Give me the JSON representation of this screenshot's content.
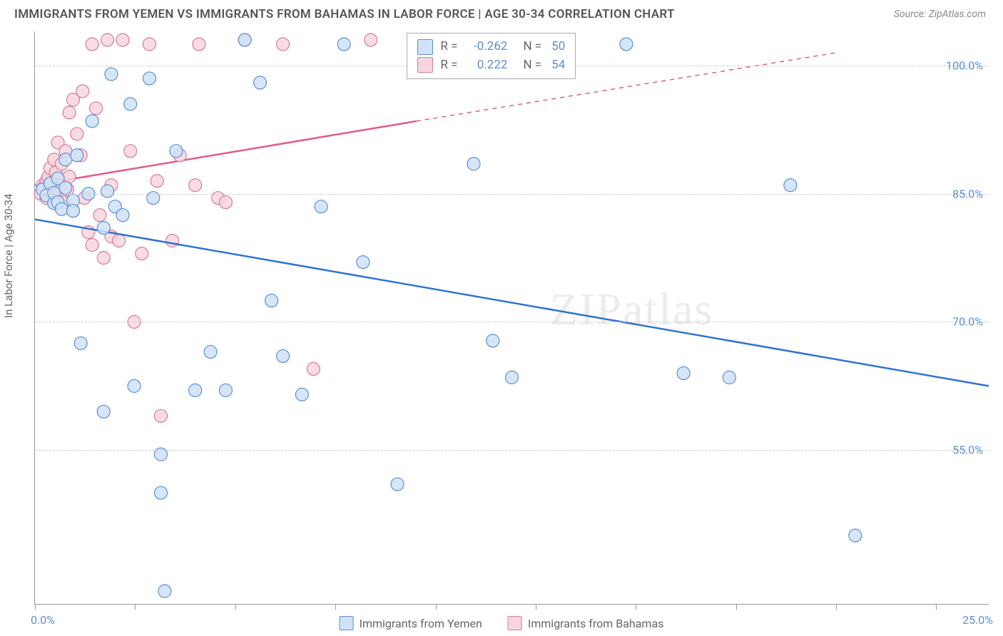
{
  "title": "IMMIGRANTS FROM YEMEN VS IMMIGRANTS FROM BAHAMAS IN LABOR FORCE | AGE 30-34 CORRELATION CHART",
  "source_label": "Source: ZipAtlas.com",
  "watermark": "ZIPatlas",
  "yaxis_title": "In Labor Force | Age 30-34",
  "chart": {
    "type": "scatter",
    "xlim": [
      0.0,
      25.0
    ],
    "ylim": [
      37.0,
      104.0
    ],
    "xtick_positions_pct": [
      0,
      10.5,
      21,
      31.5,
      42,
      52.5,
      63,
      73.5,
      84,
      94.5
    ],
    "xlabel_min": "0.0%",
    "xlabel_max": "25.0%",
    "ytick_labels": [
      "100.0%",
      "85.0%",
      "70.0%",
      "55.0%"
    ],
    "ytick_values": [
      100.0,
      85.0,
      70.0,
      55.0
    ],
    "grid_color": "#cccccc",
    "background_color": "#ffffff",
    "marker_radius": 9,
    "marker_stroke_width": 1.2,
    "line_width": 2.5,
    "series": [
      {
        "name": "Immigrants from Yemen",
        "fill": "#cfe2f7",
        "stroke": "#5b8fd4",
        "line_color": "#2f74d0",
        "r_label": "R =",
        "r_value": "-0.262",
        "n_label": "N =",
        "n_value": "50",
        "trend": {
          "x1": 0.0,
          "y1": 82.0,
          "x2": 25.0,
          "y2": 62.5
        },
        "points": [
          [
            0.2,
            85.5
          ],
          [
            0.3,
            84.8
          ],
          [
            0.4,
            86.2
          ],
          [
            0.5,
            83.9
          ],
          [
            0.5,
            85.1
          ],
          [
            0.6,
            84.0
          ],
          [
            0.6,
            86.8
          ],
          [
            0.7,
            83.2
          ],
          [
            0.8,
            85.7
          ],
          [
            0.8,
            89.0
          ],
          [
            1.0,
            84.2
          ],
          [
            1.0,
            83.0
          ],
          [
            1.1,
            89.5
          ],
          [
            1.2,
            67.5
          ],
          [
            1.4,
            85.0
          ],
          [
            1.5,
            93.5
          ],
          [
            1.8,
            81.0
          ],
          [
            1.8,
            59.5
          ],
          [
            1.9,
            85.3
          ],
          [
            2.0,
            99.0
          ],
          [
            2.1,
            83.5
          ],
          [
            2.3,
            82.5
          ],
          [
            2.5,
            95.5
          ],
          [
            2.6,
            62.5
          ],
          [
            3.0,
            98.5
          ],
          [
            3.1,
            84.5
          ],
          [
            3.3,
            54.5
          ],
          [
            3.3,
            50.0
          ],
          [
            3.4,
            38.5
          ],
          [
            3.7,
            90.0
          ],
          [
            4.2,
            62.0
          ],
          [
            4.6,
            66.5
          ],
          [
            5.0,
            62.0
          ],
          [
            5.5,
            103.0
          ],
          [
            5.9,
            98.0
          ],
          [
            6.2,
            72.5
          ],
          [
            6.5,
            66.0
          ],
          [
            7.0,
            61.5
          ],
          [
            7.5,
            83.5
          ],
          [
            8.1,
            102.5
          ],
          [
            8.6,
            77.0
          ],
          [
            9.5,
            51.0
          ],
          [
            11.5,
            88.5
          ],
          [
            12.0,
            67.8
          ],
          [
            12.5,
            63.5
          ],
          [
            15.5,
            102.5
          ],
          [
            17.0,
            64.0
          ],
          [
            18.2,
            63.5
          ],
          [
            19.8,
            86.0
          ],
          [
            21.5,
            45.0
          ]
        ]
      },
      {
        "name": "Immigrants from Bahamas",
        "fill": "#f6d6de",
        "stroke": "#d97a9a",
        "line_color": "#e35b84",
        "r_label": "R =",
        "r_value": "0.222",
        "n_label": "N =",
        "n_value": "54",
        "trend_solid": {
          "x1": 0.0,
          "y1": 86.0,
          "x2": 10.0,
          "y2": 93.5
        },
        "trend_dash": {
          "x1": 10.0,
          "y1": 93.5,
          "x2": 21.0,
          "y2": 101.5
        },
        "points": [
          [
            0.15,
            85.0
          ],
          [
            0.2,
            86.0
          ],
          [
            0.25,
            85.8
          ],
          [
            0.3,
            84.5
          ],
          [
            0.3,
            86.5
          ],
          [
            0.35,
            87.0
          ],
          [
            0.4,
            85.2
          ],
          [
            0.4,
            88.0
          ],
          [
            0.45,
            86.3
          ],
          [
            0.5,
            85.0
          ],
          [
            0.5,
            89.0
          ],
          [
            0.55,
            87.5
          ],
          [
            0.6,
            85.5
          ],
          [
            0.6,
            91.0
          ],
          [
            0.65,
            86.0
          ],
          [
            0.7,
            88.5
          ],
          [
            0.75,
            84.0
          ],
          [
            0.8,
            90.0
          ],
          [
            0.85,
            85.5
          ],
          [
            0.9,
            87.0
          ],
          [
            0.9,
            94.5
          ],
          [
            1.0,
            96.0
          ],
          [
            1.0,
            83.0
          ],
          [
            1.1,
            92.0
          ],
          [
            1.2,
            89.5
          ],
          [
            1.25,
            97.0
          ],
          [
            1.3,
            84.5
          ],
          [
            1.4,
            80.5
          ],
          [
            1.5,
            79.0
          ],
          [
            1.5,
            102.5
          ],
          [
            1.6,
            95.0
          ],
          [
            1.7,
            82.5
          ],
          [
            1.8,
            77.5
          ],
          [
            1.9,
            103.0
          ],
          [
            2.0,
            86.0
          ],
          [
            2.0,
            80.0
          ],
          [
            2.2,
            79.5
          ],
          [
            2.3,
            103.0
          ],
          [
            2.5,
            90.0
          ],
          [
            2.6,
            70.0
          ],
          [
            2.8,
            78.0
          ],
          [
            3.0,
            102.5
          ],
          [
            3.2,
            86.5
          ],
          [
            3.3,
            59.0
          ],
          [
            3.6,
            79.5
          ],
          [
            3.8,
            89.5
          ],
          [
            4.2,
            86.0
          ],
          [
            4.3,
            102.5
          ],
          [
            4.8,
            84.5
          ],
          [
            5.0,
            84.0
          ],
          [
            5.5,
            103.0
          ],
          [
            6.5,
            102.5
          ],
          [
            7.3,
            64.5
          ],
          [
            8.8,
            103.0
          ]
        ]
      }
    ],
    "legend_bottom": [
      {
        "label": "Immigrants from Yemen",
        "fill": "#cfe2f7",
        "stroke": "#5b8fd4"
      },
      {
        "label": "Immigrants from Bahamas",
        "fill": "#f6d6de",
        "stroke": "#d97a9a"
      }
    ],
    "stats_box": {
      "left_pct": 39,
      "top_pct": 0
    }
  }
}
